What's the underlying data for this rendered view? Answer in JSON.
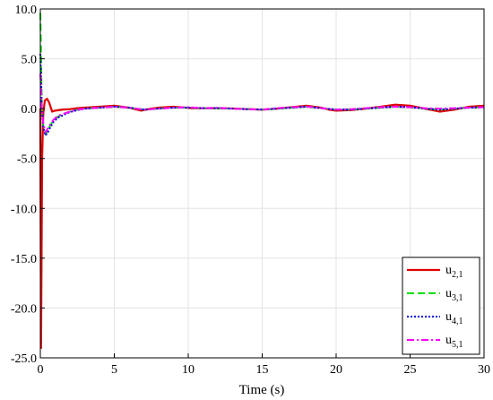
{
  "chart_data": {
    "type": "line",
    "title": "",
    "xlabel": "Time (s)",
    "ylabel": "",
    "xlim": [
      0,
      30
    ],
    "ylim": [
      -25,
      10
    ],
    "xticks": [
      0,
      5,
      10,
      15,
      20,
      25,
      30
    ],
    "xtick_labels": [
      "0",
      "5",
      "10",
      "15",
      "20",
      "25",
      "30"
    ],
    "yticks": [
      10,
      5,
      0,
      -5,
      -10,
      -15,
      -20,
      -25
    ],
    "ytick_labels": [
      "10.0",
      "5.0",
      "0.0",
      "-5.0",
      "-10.0",
      "-15.0",
      "-20.0",
      "-25.0"
    ],
    "grid": true,
    "legend_position": "bottom-right",
    "series": [
      {
        "name": "u_{2,1}",
        "name_main": "u",
        "name_sub": "2,1",
        "color": "#e00000",
        "dash": "solid",
        "x": [
          0,
          0.05,
          0.12,
          0.2,
          0.3,
          0.45,
          0.6,
          0.8,
          1.0,
          1.5,
          2.0,
          2.5,
          3,
          4,
          5,
          6,
          6.8,
          7.5,
          8,
          9,
          9.8,
          10.2,
          11,
          12,
          13,
          14,
          15,
          16,
          17,
          18,
          19,
          19.5,
          20,
          21,
          22,
          23,
          24,
          25,
          26,
          27,
          28,
          29,
          30
        ],
        "y": [
          0,
          -24,
          -5,
          -0.5,
          0.8,
          1.0,
          0.6,
          -0.3,
          -0.2,
          -0.1,
          -0.05,
          0.05,
          0.1,
          0.2,
          0.3,
          0.1,
          -0.2,
          0.0,
          0.1,
          0.2,
          0.1,
          0.05,
          0.05,
          0.05,
          0.02,
          -0.05,
          -0.1,
          0.0,
          0.15,
          0.3,
          0.1,
          -0.1,
          -0.2,
          -0.15,
          0.0,
          0.2,
          0.4,
          0.3,
          0.0,
          -0.3,
          -0.1,
          0.2,
          0.3
        ]
      },
      {
        "name": "u_{3,1}",
        "name_main": "u",
        "name_sub": "3,1",
        "color": "#00e000",
        "dash": "dashed",
        "x": [
          0,
          0.05,
          0.1,
          0.2,
          0.35,
          0.5,
          0.7,
          0.9,
          1.2,
          1.6,
          2.0,
          2.5,
          3,
          4,
          5,
          6,
          7,
          8,
          9,
          10,
          11,
          12,
          13,
          14,
          15,
          16,
          17,
          18,
          19,
          20,
          21,
          22,
          23,
          24,
          25,
          26,
          27,
          28,
          29,
          30
        ],
        "y": [
          9.6,
          5,
          0,
          -1.8,
          -2.6,
          -2.2,
          -1.6,
          -1.2,
          -0.8,
          -0.5,
          -0.3,
          -0.1,
          0.0,
          0.1,
          0.2,
          0.1,
          -0.1,
          0.0,
          0.1,
          0.1,
          0.05,
          0.05,
          0.0,
          -0.05,
          -0.1,
          0.0,
          0.1,
          0.2,
          0.05,
          -0.1,
          -0.1,
          0.0,
          0.1,
          0.2,
          0.15,
          0.0,
          -0.1,
          0.0,
          0.1,
          0.15
        ]
      },
      {
        "name": "u_{4,1}",
        "name_main": "u",
        "name_sub": "4,1",
        "color": "#0000dd",
        "dash": "dotted",
        "x": [
          0,
          0.05,
          0.1,
          0.2,
          0.35,
          0.5,
          0.7,
          0.9,
          1.2,
          1.6,
          2.0,
          2.5,
          3,
          4,
          5,
          6,
          7,
          8,
          9,
          10,
          11,
          12,
          13,
          14,
          15,
          16,
          17,
          18,
          19,
          20,
          21,
          22,
          23,
          24,
          25,
          26,
          27,
          28,
          29,
          30
        ],
        "y": [
          5.5,
          3,
          0,
          -1.8,
          -2.7,
          -2.4,
          -1.8,
          -1.3,
          -0.9,
          -0.6,
          -0.35,
          -0.15,
          0.0,
          0.1,
          0.2,
          0.1,
          -0.1,
          0.0,
          0.1,
          0.1,
          0.05,
          0.05,
          0.0,
          -0.05,
          -0.1,
          0.0,
          0.1,
          0.2,
          0.05,
          -0.1,
          -0.1,
          0.0,
          0.1,
          0.2,
          0.15,
          0.0,
          -0.1,
          0.0,
          0.1,
          0.15
        ]
      },
      {
        "name": "u_{5,1}",
        "name_main": "u",
        "name_sub": "5,1",
        "color": "#ff00ff",
        "dash": "dashdot",
        "x": [
          0,
          0.05,
          0.1,
          0.2,
          0.35,
          0.5,
          0.7,
          0.9,
          1.2,
          1.6,
          2.0,
          2.5,
          3,
          4,
          5,
          6,
          7,
          8,
          9,
          10,
          11,
          12,
          13,
          14,
          15,
          16,
          17,
          18,
          19,
          20,
          21,
          22,
          23,
          24,
          25,
          26,
          27,
          28,
          29,
          30
        ],
        "y": [
          3.5,
          2,
          0,
          -1.5,
          -2.4,
          -2.0,
          -1.5,
          -1.1,
          -0.7,
          -0.5,
          -0.3,
          -0.1,
          0.0,
          0.1,
          0.2,
          0.1,
          -0.1,
          0.0,
          0.1,
          0.15,
          0.05,
          0.1,
          0.0,
          -0.05,
          -0.1,
          0.05,
          0.15,
          0.2,
          0.05,
          -0.1,
          -0.05,
          0.05,
          0.15,
          0.2,
          0.15,
          0.05,
          0.0,
          0.05,
          0.1,
          0.15
        ]
      }
    ]
  }
}
